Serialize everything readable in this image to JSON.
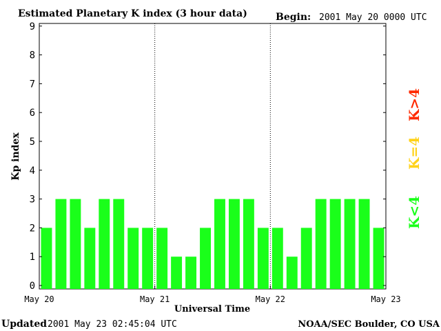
{
  "header": {
    "title": "Estimated Planetary K index (3 hour data)",
    "begin_label": "Begin:",
    "begin_value": "2001 May 20 0000 UTC"
  },
  "footer": {
    "updated_label": "Updated",
    "updated_value": "2001 May 23 02:45:04 UTC",
    "source": "NOAA/SEC Boulder, CO USA"
  },
  "legend": {
    "high": {
      "label": "K>4",
      "color": "#ff2a00"
    },
    "mid": {
      "label": "K=4",
      "color": "#ffd21a"
    },
    "low": {
      "label": "K<4",
      "color": "#1aff1a"
    }
  },
  "chart_data": {
    "type": "bar",
    "title": "Estimated Planetary K index (3 hour data)",
    "xlabel": "Universal Time",
    "ylabel": "Kp index",
    "ylim": [
      0,
      9
    ],
    "yticks": [
      "0",
      "1",
      "2",
      "3",
      "4",
      "5",
      "6",
      "7",
      "8",
      "9"
    ],
    "xticks": [
      "May 20",
      "May 21",
      "May 22",
      "May 23"
    ],
    "bar_color": "#1aff1a",
    "grid": false,
    "day_separators": true,
    "values": [
      2,
      3,
      3,
      2,
      3,
      3,
      2,
      2,
      2,
      1,
      1,
      2,
      3,
      3,
      3,
      2,
      2,
      1,
      2,
      3,
      3,
      3,
      3,
      2
    ]
  }
}
